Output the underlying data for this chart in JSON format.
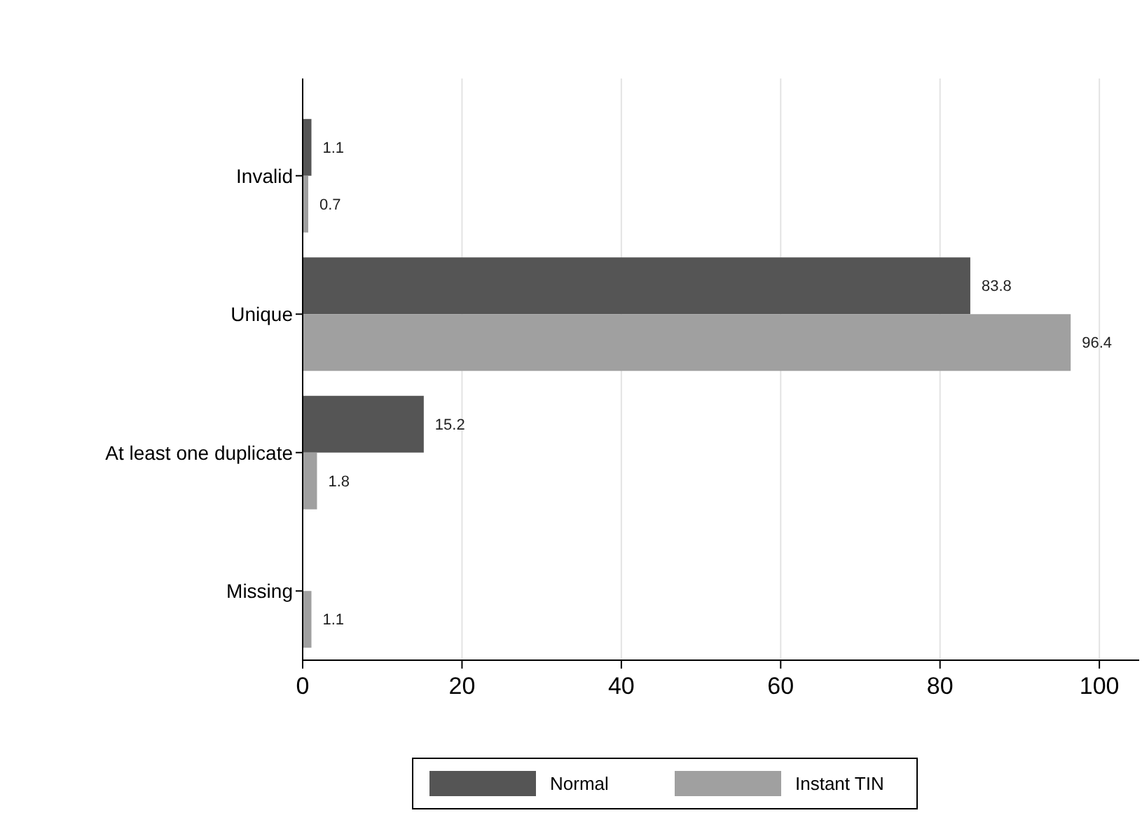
{
  "chart_data": {
    "type": "bar",
    "orientation": "horizontal",
    "categories": [
      "Invalid",
      "Unique",
      "At least one duplicate",
      "Missing"
    ],
    "series": [
      {
        "name": "Normal",
        "color": "#555555",
        "values": [
          1.1,
          83.8,
          15.2,
          null
        ]
      },
      {
        "name": "Instant TIN",
        "color": "#a0a0a0",
        "values": [
          0.7,
          96.4,
          1.8,
          1.1
        ]
      }
    ],
    "xlim": [
      0,
      105
    ],
    "xticks": [
      0,
      20,
      40,
      60,
      80,
      100
    ],
    "grid": "x",
    "legend": "bottom",
    "data_labels": true
  }
}
